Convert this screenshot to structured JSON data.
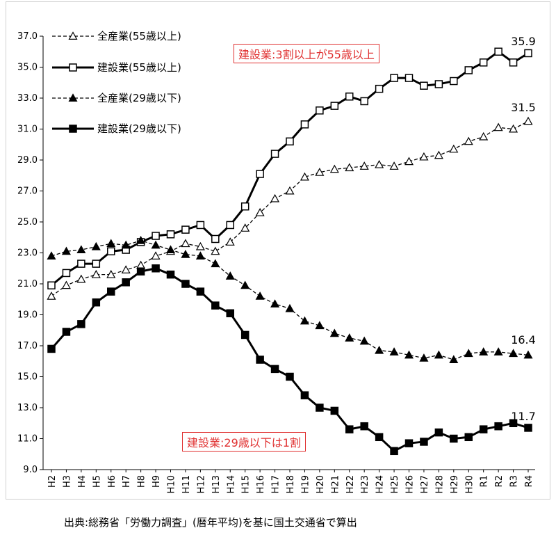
{
  "chart_data": {
    "type": "line",
    "ylim": [
      9.0,
      37.0
    ],
    "y_ticks": [
      "9.0",
      "11.0",
      "13.0",
      "15.0",
      "17.0",
      "19.0",
      "21.0",
      "23.0",
      "25.0",
      "27.0",
      "29.0",
      "31.0",
      "33.0",
      "35.0",
      "37.0"
    ],
    "categories": [
      "H2",
      "H3",
      "H4",
      "H5",
      "H6",
      "H7",
      "H8",
      "H9",
      "H10",
      "H11",
      "H12",
      "H13",
      "H14",
      "H15",
      "H16",
      "H17",
      "H18",
      "H19",
      "H20",
      "H21",
      "H22",
      "H23",
      "H24",
      "H25",
      "H26",
      "H27",
      "H28",
      "H29",
      "H30",
      "R1",
      "R2",
      "R3",
      "R4"
    ],
    "series": [
      {
        "name": "全産業(55歳以上)",
        "style": "dashed-open-triangle",
        "values": [
          20.2,
          20.9,
          21.3,
          21.6,
          21.6,
          21.9,
          22.2,
          22.8,
          23.1,
          23.6,
          23.4,
          23.1,
          23.7,
          24.6,
          25.6,
          26.5,
          27.0,
          27.9,
          28.2,
          28.4,
          28.5,
          28.6,
          28.7,
          28.6,
          28.9,
          29.2,
          29.3,
          29.7,
          30.2,
          30.5,
          31.1,
          31.0,
          31.5
        ]
      },
      {
        "name": "建設業(55歳以上)",
        "style": "solid-open-square",
        "values": [
          20.9,
          21.7,
          22.3,
          22.3,
          23.1,
          23.2,
          23.7,
          24.1,
          24.2,
          24.5,
          24.8,
          23.9,
          24.8,
          26.0,
          28.1,
          29.4,
          30.2,
          31.3,
          32.2,
          32.5,
          33.1,
          32.8,
          33.6,
          34.3,
          34.3,
          33.8,
          33.9,
          34.1,
          34.8,
          35.3,
          36.0,
          35.3,
          35.9
        ]
      },
      {
        "name": "全産業(29歳以下)",
        "style": "dashed-filled-triangle",
        "values": [
          22.8,
          23.1,
          23.2,
          23.4,
          23.6,
          23.5,
          23.8,
          23.5,
          23.2,
          22.9,
          22.8,
          22.3,
          21.5,
          20.9,
          20.2,
          19.7,
          19.4,
          18.6,
          18.3,
          17.8,
          17.5,
          17.3,
          16.7,
          16.6,
          16.4,
          16.2,
          16.4,
          16.1,
          16.5,
          16.6,
          16.6,
          16.5,
          16.4
        ]
      },
      {
        "name": "建設業(29歳以下)",
        "style": "solid-filled-square",
        "values": [
          16.8,
          17.9,
          18.4,
          19.8,
          20.5,
          21.1,
          21.8,
          22.0,
          21.6,
          21.0,
          20.5,
          19.6,
          19.1,
          17.7,
          16.1,
          15.5,
          15.0,
          13.8,
          13.0,
          12.8,
          11.6,
          11.8,
          11.1,
          10.2,
          10.7,
          10.8,
          11.4,
          11.0,
          11.1,
          11.6,
          11.8,
          12.0,
          11.7
        ]
      }
    ],
    "end_labels": [
      "35.9",
      "31.5",
      "16.4",
      "11.7"
    ],
    "annotations": {
      "callout_55": "建設業:3割以上が55歳以上",
      "callout_29": "建設業:29歳以下は1割"
    },
    "legend_placement": "top-left",
    "grid": false,
    "colors": {
      "line": "#000000",
      "callout": "#e03030",
      "frame": "#d0d0d0"
    }
  },
  "source_note": "出典:総務省「労働力調査」(暦年平均)を基に国土交通省で算出"
}
